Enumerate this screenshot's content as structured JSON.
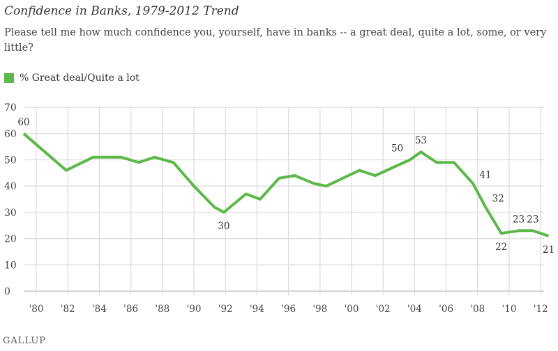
{
  "title": "Confidence in Banks, 1979-2012 Trend",
  "subtitle": "Please tell me how much confidence you, yourself, have in banks -- a great deal, quite a lot, some, or very little?",
  "logo": "GALLUP",
  "chart_data": {
    "type": "line",
    "title": "Confidence in Banks, 1979-2012 Trend",
    "legend": "top-left",
    "grid": true,
    "ylim": [
      0,
      70
    ],
    "yticks": [
      0,
      10,
      20,
      30,
      40,
      50,
      60,
      70
    ],
    "xlim": [
      1979,
      2012.6
    ],
    "xticks": [
      1980,
      1982,
      1984,
      1986,
      1988,
      1990,
      1992,
      1994,
      1996,
      1998,
      2000,
      2002,
      2004,
      2006,
      2008,
      2010,
      2012
    ],
    "xtick_labels": [
      "'80",
      "'82",
      "'84",
      "'86",
      "'88",
      "'90",
      "'92",
      "'94",
      "'96",
      "'98",
      "'00",
      "'02",
      "'04",
      "'06",
      "'08",
      "'10",
      "'12"
    ],
    "series": [
      {
        "name": "% Great deal/Quite a lot",
        "color": "#5cb848",
        "x": [
          1979.2,
          1981.9,
          1983.6,
          1985.4,
          1986.5,
          1987.5,
          1988.7,
          1990,
          1991.3,
          1991.9,
          1993.3,
          1994.2,
          1995.4,
          1996.4,
          1997.6,
          1998.4,
          2000.5,
          2001.5,
          2003.7,
          2004.4,
          2005.4,
          2006.5,
          2007.7,
          2008.5,
          2009.5,
          2010.6,
          2011.5,
          2012.5
        ],
        "y": [
          60,
          46,
          51,
          51,
          49,
          51,
          49,
          40,
          32,
          30,
          37,
          35,
          43,
          44,
          41,
          40,
          46,
          44,
          50,
          53,
          49,
          49,
          41,
          32,
          22,
          23,
          23,
          21
        ],
        "labeled": [
          {
            "i": 0,
            "text": "60",
            "pos": "above"
          },
          {
            "i": 9,
            "text": "30",
            "pos": "below"
          },
          {
            "i": 18,
            "text": "50",
            "pos": "above-left"
          },
          {
            "i": 19,
            "text": "53",
            "pos": "above"
          },
          {
            "i": 22,
            "text": "41",
            "pos": "right"
          },
          {
            "i": 23,
            "text": "32",
            "pos": "right"
          },
          {
            "i": 24,
            "text": "22",
            "pos": "below"
          },
          {
            "i": 25,
            "text": "23",
            "pos": "above"
          },
          {
            "i": 26,
            "text": "23",
            "pos": "above"
          },
          {
            "i": 27,
            "text": "21",
            "pos": "below"
          }
        ]
      }
    ]
  }
}
